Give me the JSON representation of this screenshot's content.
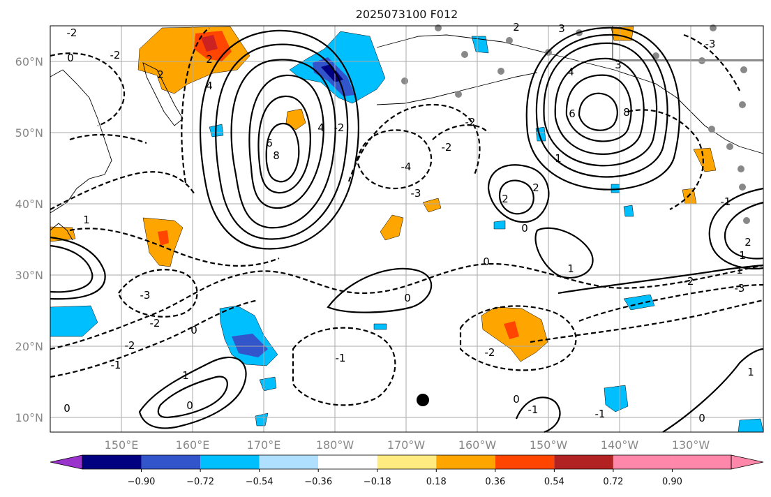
{
  "title": "2025073100 F012",
  "map": {
    "lat_labels": [
      "60°N",
      "50°N",
      "40°N",
      "30°N",
      "20°N",
      "10°N"
    ],
    "lon_labels": [
      "150°E",
      "160°E",
      "170°E",
      "180°W",
      "170°W",
      "160°W",
      "150°W",
      "140°W",
      "130°W"
    ],
    "grid": true,
    "contour_labels": [
      "-2",
      "0",
      "-2",
      "2",
      "4",
      "8",
      "6",
      "4",
      "-2",
      "-3",
      "-4",
      "2",
      "4",
      "8",
      "6",
      "1",
      "-2",
      "-2",
      "-1",
      "0",
      "1",
      "2",
      "0",
      "1",
      "0",
      "-3",
      "-2",
      "0",
      "-2",
      "-1",
      "-2",
      "1",
      "-1",
      "1",
      "0",
      "0",
      "-2",
      "-3",
      "1",
      "3",
      "2",
      "-1",
      "1",
      "0",
      "2",
      "-3",
      "2",
      "3",
      "0",
      "-1"
    ]
  },
  "colorbar": {
    "ticks": [
      "−0.90",
      "−0.72",
      "−0.54",
      "−0.36",
      "−0.18",
      "0.18",
      "0.36",
      "0.54",
      "0.72",
      "0.90"
    ],
    "colors": [
      "#9933cc",
      "#000080",
      "#3355cc",
      "#00bfff",
      "#b0e0ff",
      "#ffffff",
      "#ffeb80",
      "#ffa500",
      "#ff4500",
      "#b22222",
      "#ff88aa",
      "#ff88aa"
    ]
  },
  "colors": {
    "orange": "#ffa500",
    "red": "#ff4500",
    "darkred": "#cc2222",
    "skyblue": "#00bfff",
    "mediumblue": "#3355cc",
    "navy": "#000080",
    "land_dots": "#888888"
  }
}
